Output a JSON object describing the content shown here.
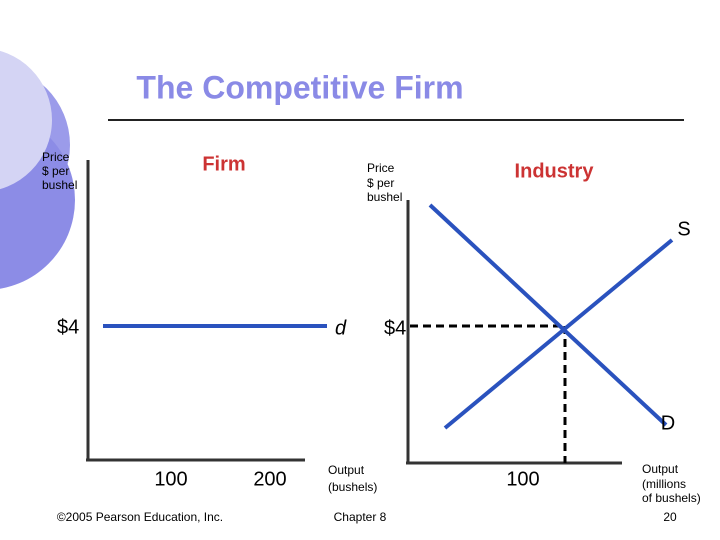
{
  "header": {
    "title": "The Competitive Firm"
  },
  "firm": {
    "y_label": [
      "Price",
      "$ per",
      "bushel"
    ],
    "title": "Firm",
    "price_label": "$4",
    "curve_label": "d",
    "x_ticks": [
      "100",
      "200"
    ],
    "x_label": [
      "Output",
      "(bushels)"
    ]
  },
  "industry": {
    "y_label": [
      "Price",
      "$ per",
      "bushel"
    ],
    "title": "Industry",
    "supply_label": "S",
    "demand_label": "D",
    "price_label": "$4",
    "quantity_label": "100",
    "x_label": [
      "Output",
      "(millions",
      "of bushels)"
    ]
  },
  "footer": {
    "copyright": "©2005 Pearson Education, Inc.",
    "chapter": "Chapter 8",
    "page": "20"
  }
}
